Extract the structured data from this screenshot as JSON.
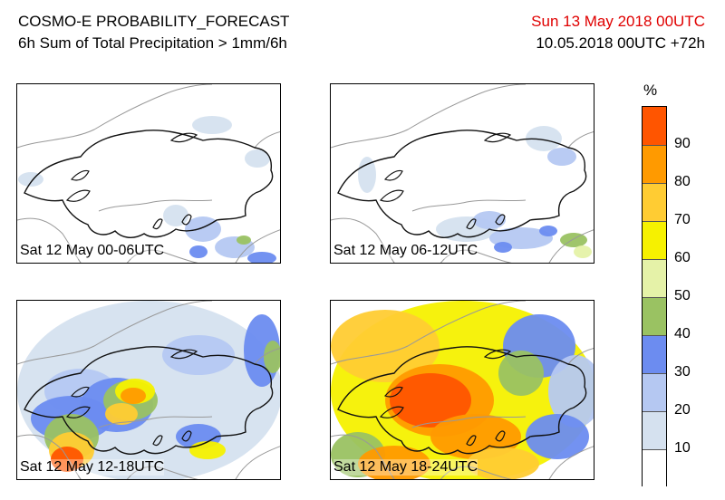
{
  "header": {
    "title": "COSMO-E PROBABILITY_FORECAST",
    "subtitle": "6h Sum of Total Precipitation > 1mm/6h",
    "valid_date": "Sun 13 May 2018 00UTC",
    "run": "10.05.2018 00UTC +72h"
  },
  "panels": [
    {
      "label": "Sat 12 May 00-06UTC"
    },
    {
      "label": "Sat 12 May 06-12UTC"
    },
    {
      "label": "Sat 12 May 12-18UTC"
    },
    {
      "label": "Sat 12 May 18-24UTC"
    }
  ],
  "legend": {
    "unit": "%",
    "ticks": [
      "90",
      "80",
      "70",
      "60",
      "50",
      "40",
      "30",
      "20",
      "10"
    ],
    "colors": [
      "#ffffff",
      "#d5e1ef",
      "#b5c8f2",
      "#6c8cf0",
      "#9ac262",
      "#e5f2a8",
      "#f6f100",
      "#ffcc33",
      "#ff9a00",
      "#ff5500"
    ]
  }
}
